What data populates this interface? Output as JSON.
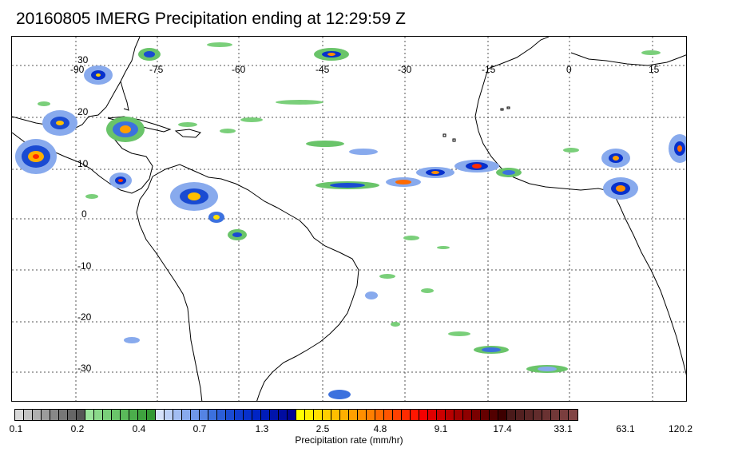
{
  "title": "20160805 IMERG Precipitation ending at 12:29:59 Z",
  "map": {
    "longitude_labels": [
      "-90",
      "-75",
      "-60",
      "-45",
      "-30",
      "-15",
      "0",
      "15"
    ],
    "latitude_labels": [
      "30",
      "20",
      "10",
      "0",
      "-10",
      "-20",
      "-30"
    ]
  },
  "colorbar": {
    "label": "Precipitation rate (mm/hr)",
    "tick_labels": [
      "0.1",
      "0.2",
      "0.4",
      "0.7",
      "1.3",
      "2.5",
      "4.8",
      "9.1",
      "17.4",
      "33.1",
      "63.1",
      "120.2"
    ],
    "colors": [
      "#d9d9d9",
      "#c4c4c4",
      "#b0b0b0",
      "#9c9c9c",
      "#888888",
      "#777777",
      "#666666",
      "#555555",
      "#9be39b",
      "#8ad98a",
      "#7acf7a",
      "#6ac46a",
      "#5ab95a",
      "#4cae4c",
      "#3fa33f",
      "#339833",
      "#d6e2fb",
      "#bcd0f7",
      "#a2bdf2",
      "#88aaed",
      "#6f97e8",
      "#5584e3",
      "#3c71de",
      "#2b5ed8",
      "#1a4bd2",
      "#0f3ccf",
      "#0730cc",
      "#0024c4",
      "#001cb8",
      "#0014ac",
      "#000ca0",
      "#000494",
      "#ffff00",
      "#ffef00",
      "#ffdf00",
      "#ffcf00",
      "#ffbf00",
      "#ffaf00",
      "#ff9f00",
      "#ff8f00",
      "#ff7f00",
      "#ff6a00",
      "#ff5500",
      "#ff4000",
      "#ff2b00",
      "#ff1600",
      "#f50000",
      "#e00000",
      "#cc0000",
      "#b80000",
      "#a30000",
      "#8f0000",
      "#7a0000",
      "#660000",
      "#520000",
      "#3d0000",
      "#4a1a1a",
      "#522020",
      "#5a2626",
      "#622c2c",
      "#6a3232",
      "#723838",
      "#7a3e3e",
      "#824444"
    ]
  }
}
